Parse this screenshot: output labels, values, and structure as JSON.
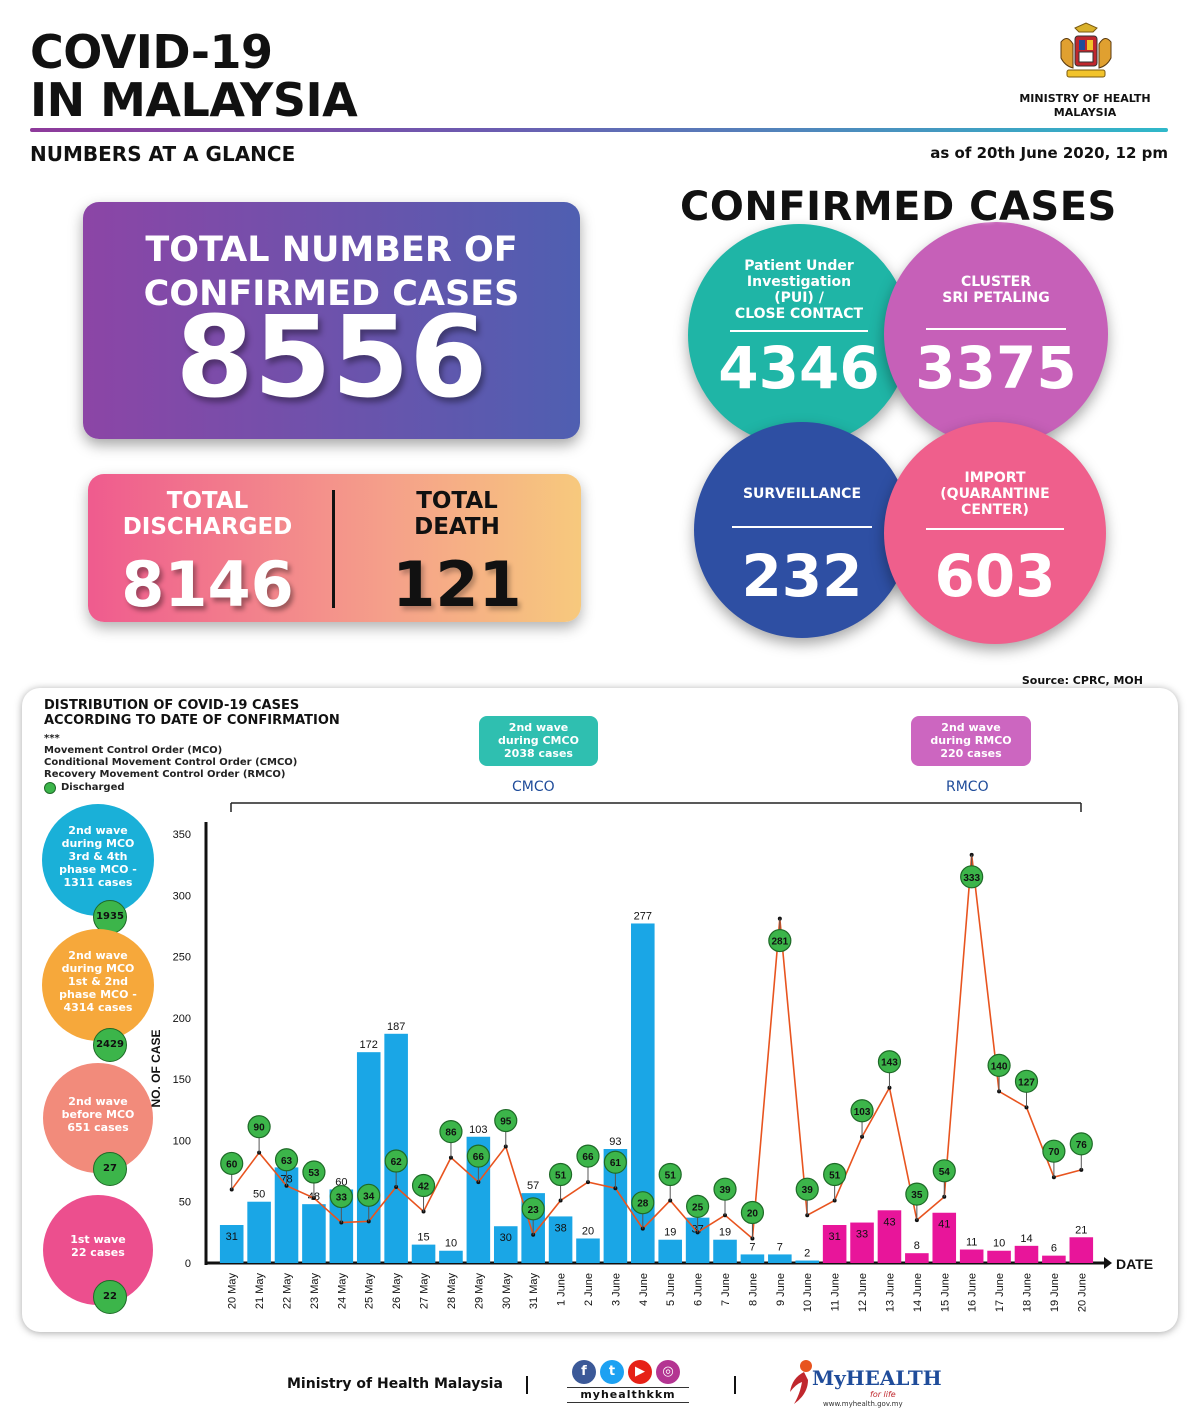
{
  "header": {
    "title_line1": "COVID-19",
    "title_line2": "IN MALAYSIA",
    "subtitle": "NUMBERS AT A GLANCE",
    "as_of": "as of 20th June 2020, 12 pm",
    "ministry_line1": "MINISTRY OF HEALTH",
    "ministry_line2": "MALAYSIA"
  },
  "totals": {
    "confirmed_label_1": "TOTAL NUMBER OF",
    "confirmed_label_2": "CONFIRMED CASES",
    "confirmed_value": "8556",
    "discharged_label_1": "TOTAL",
    "discharged_label_2": "DISCHARGED",
    "discharged_value": "8146",
    "death_label_1": "TOTAL",
    "death_label_2": "DEATH",
    "death_value": "121"
  },
  "confirmed_cases": {
    "title": "CONFIRMED CASES",
    "pui_l1": "Patient Under",
    "pui_l2": "Investigation",
    "pui_l3": "(PUI) /",
    "pui_l4": "CLOSE CONTACT",
    "pui_value": "4346",
    "cluster_l1": "CLUSTER",
    "cluster_l2": "SRI PETALING",
    "cluster_value": "3375",
    "surv_label": "SURVEILLANCE",
    "surv_value": "232",
    "import_l1": "IMPORT",
    "import_l2": "(QUARANTINE",
    "import_l3": "CENTER)",
    "import_value": "603",
    "colors": {
      "pui": "#1fb5a6",
      "cluster": "#c660b8",
      "surveillance": "#2e4fa3",
      "import": "#ef5f8c"
    }
  },
  "source": "Source: CPRC, MOH",
  "panel": {
    "title_l1": "DISTRIBUTION OF COVID-19 CASES",
    "title_l2": "ACCORDING TO DATE OF CONFIRMATION",
    "stars": "***",
    "legend_mco": "Movement Control Order (MCO)",
    "legend_cmco": "Conditional Movement Control Order (CMCO)",
    "legend_rmco": "Recovery Movement Control Order (RMCO)",
    "legend_discharged": "Discharged",
    "cmco_box_l1": "2nd wave",
    "cmco_box_l2": "during CMCO",
    "cmco_box_l3": "2038 cases",
    "rmco_box_l1": "2nd wave",
    "rmco_box_l2": "during RMCO",
    "rmco_box_l3": "220 cases",
    "cmco_label": "CMCO",
    "rmco_label": "RMCO",
    "waves": [
      {
        "l1": "2nd wave",
        "l2": "during MCO",
        "l3": "3rd & 4th",
        "l4": "phase MCO -",
        "l5": "1311 cases",
        "badge": "1935",
        "color": "#1ab0d8"
      },
      {
        "l1": "2nd wave",
        "l2": "during MCO",
        "l3": "1st & 2nd",
        "l4": "phase MCO -",
        "l5": "4314 cases",
        "badge": "2429",
        "color": "#f6a83b"
      },
      {
        "l1": "2nd wave",
        "l2": "before MCO",
        "l3": "651 cases",
        "l4": "",
        "l5": "",
        "badge": "27",
        "color": "#f28b7b"
      },
      {
        "l1": "1st wave",
        "l2": "22 cases",
        "l3": "",
        "l4": "",
        "l5": "",
        "badge": "22",
        "color": "#ec4f8e"
      }
    ]
  },
  "chart_data": {
    "type": "bar",
    "title": "DISTRIBUTION OF COVID-19 CASES ACCORDING TO DATE OF CONFIRMATION",
    "xlabel": "DATE",
    "ylabel": "NO. OF CASE",
    "ylim": [
      0,
      350
    ],
    "yticks": [
      0,
      50,
      100,
      150,
      200,
      250,
      300,
      350
    ],
    "categories": [
      "20 May",
      "21 May",
      "22 May",
      "23 May",
      "24 May",
      "25 May",
      "26 May",
      "27 May",
      "28 May",
      "29 May",
      "30 May",
      "31 May",
      "1 June",
      "2 June",
      "3 June",
      "4 June",
      "5 June",
      "6 June",
      "7 June",
      "8 June",
      "9 June",
      "10 June",
      "11 June",
      "12 June",
      "13 June",
      "14 June",
      "15 June",
      "16 June",
      "17 June",
      "18 June",
      "19 June",
      "20 June"
    ],
    "series": [
      {
        "values": [
          31,
          50,
          78,
          48,
          60,
          172,
          187,
          15,
          10,
          103,
          30,
          57,
          38,
          20,
          93,
          277,
          19,
          37,
          19,
          7,
          7,
          2,
          31,
          33,
          43,
          8,
          41,
          11,
          10,
          14,
          6,
          21
        ]
      },
      {
        "name": "Discharged",
        "values": [
          60,
          90,
          63,
          53,
          33,
          34,
          62,
          42,
          86,
          66,
          95,
          23,
          51,
          66,
          61,
          28,
          51,
          25,
          39,
          20,
          281,
          39,
          51,
          103,
          143,
          35,
          54,
          333,
          140,
          127,
          70,
          76
        ]
      }
    ],
    "bar_colors": {
      "cmco": "#1aa6e6",
      "rmco": "#e8159a"
    },
    "discharged_line_color": "#e8541f",
    "discharged_marker_color": "#3cb54a",
    "grid": false,
    "legend": "top-left"
  },
  "footer": {
    "ministry": "Ministry of Health Malaysia",
    "handle": "myhealthkkm",
    "brand": "MyHEALTH",
    "tagline": "for life",
    "url": "www.myhealth.gov.my"
  }
}
